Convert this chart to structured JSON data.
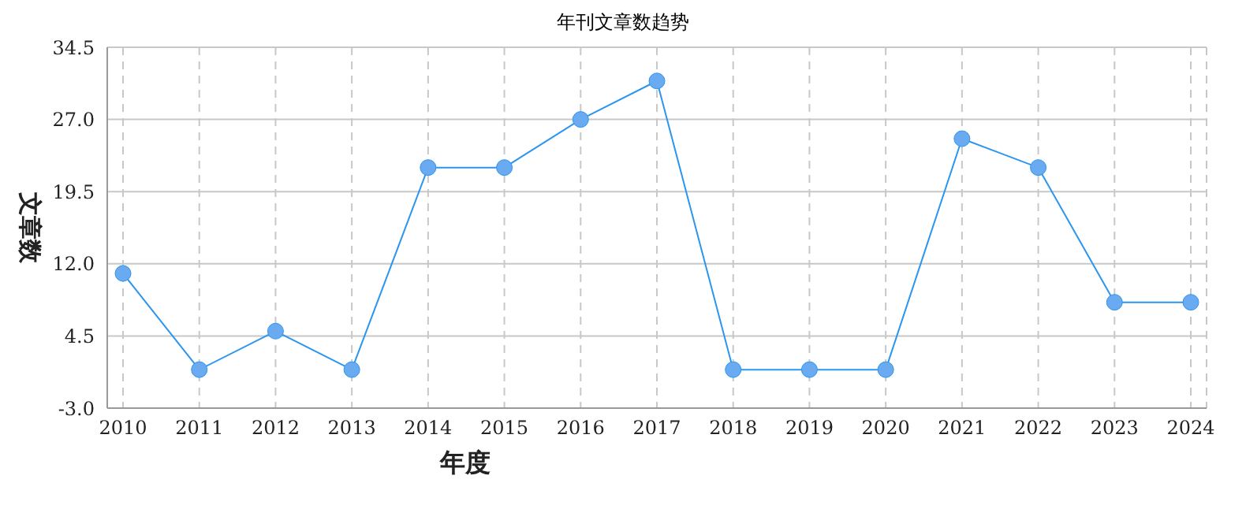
{
  "chart_data": {
    "type": "line",
    "title": "年刊文章数趋势",
    "xlabel": "年度",
    "ylabel": "文章数",
    "categories": [
      "2010",
      "2011",
      "2012",
      "2013",
      "2014",
      "2015",
      "2016",
      "2017",
      "2018",
      "2019",
      "2020",
      "2021",
      "2022",
      "2023",
      "2024"
    ],
    "series": [
      {
        "color": "#2b95ef",
        "values": [
          11,
          1,
          5,
          1,
          22,
          22,
          27,
          31,
          1,
          1,
          1,
          25,
          22,
          8,
          8
        ]
      }
    ],
    "ylim": [
      -3,
      34.5
    ],
    "yticks": [
      {
        "value": -3,
        "label": "-3.0"
      },
      {
        "value": 4.5,
        "label": "4.5"
      },
      {
        "value": 12,
        "label": "12.0"
      },
      {
        "value": 19.5,
        "label": "19.5"
      },
      {
        "value": 27,
        "label": "27.0"
      },
      {
        "value": 34.5,
        "label": "34.5"
      }
    ],
    "grid": true,
    "marker": "circle",
    "line_style": "solid"
  }
}
